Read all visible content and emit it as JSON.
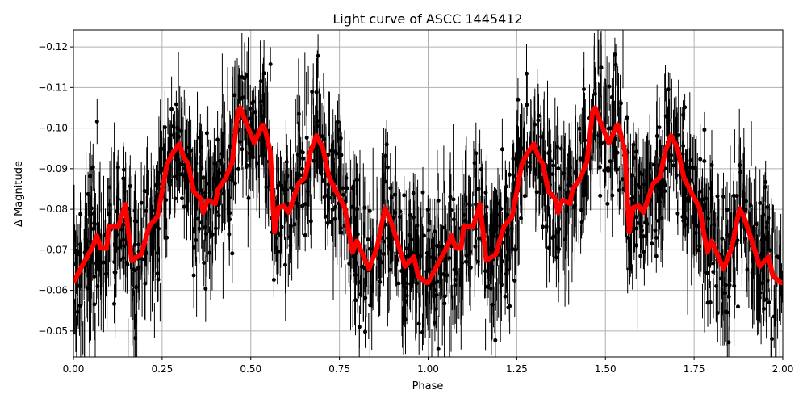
{
  "chart_data": {
    "type": "scatter",
    "title": "Light curve of ASCC 1445412",
    "xlabel": "Phase",
    "ylabel": "Δ Magnitude",
    "xlim": [
      0.0,
      2.0
    ],
    "ylim": [
      -0.0436,
      -0.1242
    ],
    "y_inverted": true,
    "grid": true,
    "xticks": [
      0.0,
      0.25,
      0.5,
      0.75,
      1.0,
      1.25,
      1.5,
      1.75,
      2.0
    ],
    "xtick_labels": [
      "0.00",
      "0.25",
      "0.50",
      "0.75",
      "1.00",
      "1.25",
      "1.50",
      "1.75",
      "2.00"
    ],
    "yticks": [
      -0.12,
      -0.11,
      -0.1,
      -0.09,
      -0.08,
      -0.07,
      -0.06,
      -0.05
    ],
    "ytick_labels": [
      "−0.12",
      "−0.11",
      "−0.10",
      "−0.09",
      "−0.08",
      "−0.07",
      "−0.06",
      "−0.05"
    ],
    "observations": {
      "marker": "dot with vertical error bars",
      "color": "#000000"
    },
    "model_curve": {
      "color": "#ff0000",
      "repeats_with_phase_offset": 1.0,
      "phase": [
        0.0,
        0.032,
        0.055,
        0.066,
        0.077,
        0.093,
        0.1,
        0.127,
        0.146,
        0.164,
        0.191,
        0.214,
        0.237,
        0.264,
        0.282,
        0.298,
        0.312,
        0.323,
        0.339,
        0.357,
        0.366,
        0.378,
        0.4,
        0.407,
        0.43,
        0.448,
        0.464,
        0.471,
        0.482,
        0.51,
        0.532,
        0.537,
        0.555,
        0.567,
        0.578,
        0.594,
        0.607,
        0.635,
        0.653,
        0.669,
        0.685,
        0.703,
        0.721,
        0.744,
        0.765,
        0.787,
        0.799,
        0.833,
        0.856,
        0.878,
        0.892,
        0.912,
        0.935,
        0.96,
        0.972,
        0.994,
        1.0
      ],
      "mag": [
        -0.0619,
        -0.0673,
        -0.0709,
        -0.0735,
        -0.0705,
        -0.0703,
        -0.0758,
        -0.0758,
        -0.0812,
        -0.0673,
        -0.0689,
        -0.0758,
        -0.0782,
        -0.0911,
        -0.0941,
        -0.0961,
        -0.0927,
        -0.0913,
        -0.0844,
        -0.0828,
        -0.0792,
        -0.0822,
        -0.0814,
        -0.0848,
        -0.0878,
        -0.0917,
        -0.1043,
        -0.105,
        -0.1023,
        -0.0963,
        -0.1007,
        -0.1007,
        -0.0943,
        -0.0744,
        -0.0804,
        -0.0808,
        -0.0792,
        -0.0864,
        -0.0878,
        -0.0943,
        -0.0981,
        -0.0951,
        -0.0878,
        -0.0838,
        -0.0804,
        -0.0694,
        -0.0722,
        -0.0653,
        -0.0705,
        -0.0802,
        -0.0778,
        -0.0724,
        -0.0659,
        -0.0683,
        -0.0635,
        -0.0619,
        -0.0619
      ]
    }
  }
}
